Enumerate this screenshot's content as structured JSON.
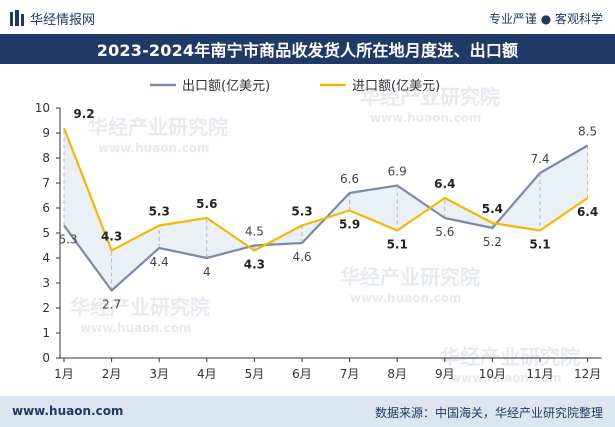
{
  "header": {
    "brand": "华经情报网",
    "tagline": "专业严谨 ● 客观科学"
  },
  "chart_data": {
    "type": "line",
    "title": "2023-2024年南宁市商品收发货人所在地月度进、出口额",
    "categories": [
      "1月",
      "2月",
      "3月",
      "4月",
      "5月",
      "6月",
      "7月",
      "8月",
      "9月",
      "10月",
      "11月",
      "12月"
    ],
    "ylim": [
      0,
      10
    ],
    "yticks": [
      0,
      1,
      2,
      3,
      4,
      5,
      6,
      7,
      8,
      9,
      10
    ],
    "grid": false,
    "legend_position": "top",
    "series": [
      {
        "name": "出口额(亿美元)",
        "color": "#7c8aa5",
        "values": [
          5.3,
          2.7,
          4.4,
          4.0,
          4.5,
          4.6,
          6.6,
          6.9,
          5.6,
          5.2,
          7.4,
          8.5
        ],
        "labels": [
          "5.3",
          "2.7",
          "4.4",
          "4",
          "4.5",
          "4.6",
          "6.6",
          "6.9",
          "5.6",
          "5.2",
          "7.4",
          "8.5"
        ]
      },
      {
        "name": "进口额(亿美元)",
        "color": "#f5b800",
        "values": [
          9.2,
          4.3,
          5.3,
          5.6,
          4.3,
          5.3,
          5.9,
          5.1,
          6.4,
          5.4,
          5.1,
          6.4
        ],
        "labels": [
          "9.2",
          "4.3",
          "5.3",
          "5.6",
          "4.3",
          "5.3",
          "5.9",
          "5.1",
          "6.4",
          "5.4",
          "5.1",
          "6.4"
        ]
      }
    ]
  },
  "watermark": {
    "text": "华经产业研究院",
    "url": "www.huaon.com"
  },
  "footer": {
    "website": "www.huaon.com",
    "source": "数据来源：中国海关，华经产业研究院整理"
  }
}
